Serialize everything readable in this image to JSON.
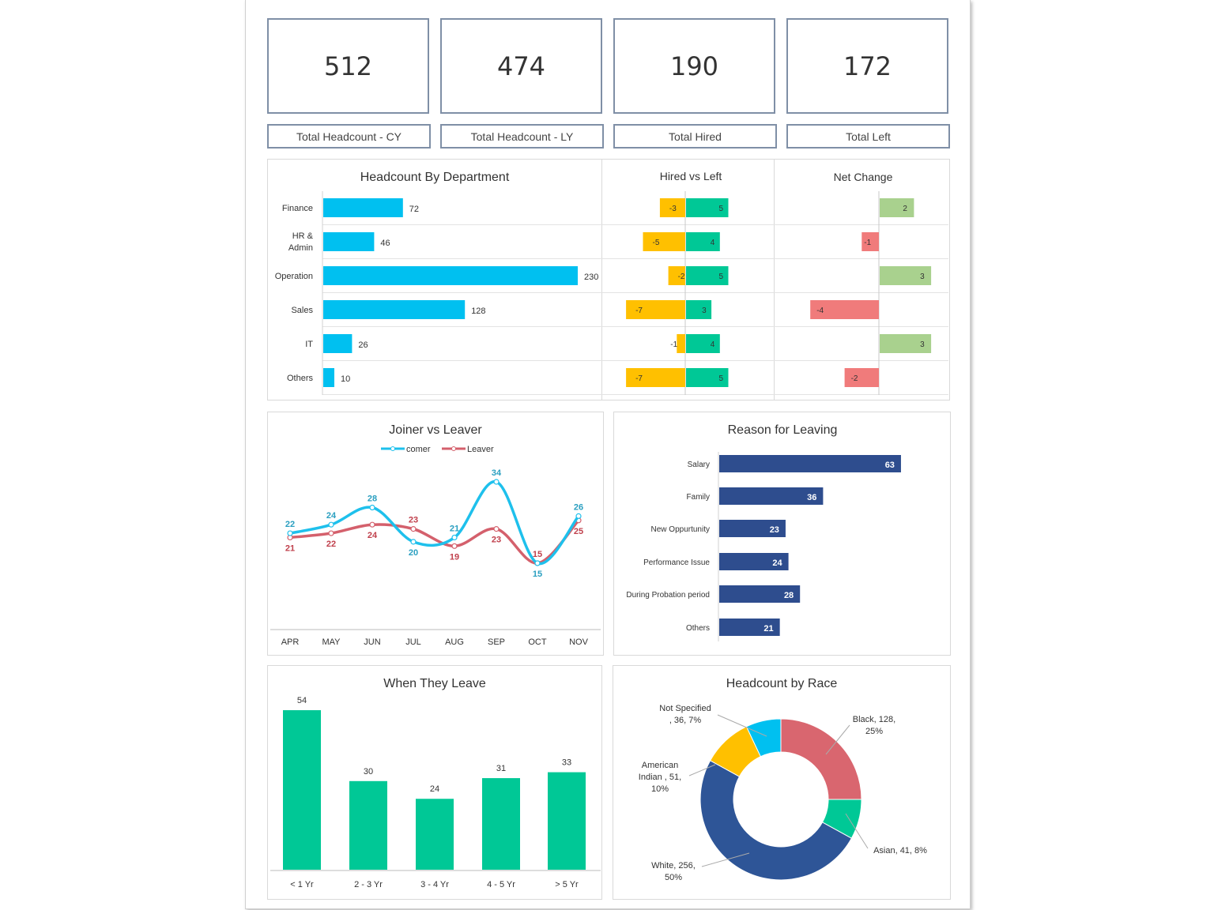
{
  "kpis": [
    {
      "value": "512",
      "label": "Total Headcount - CY"
    },
    {
      "value": "474",
      "label": "Total Headcount - LY"
    },
    {
      "value": "190",
      "label": "Total Hired"
    },
    {
      "value": "172",
      "label": "Total Left"
    }
  ],
  "colors": {
    "dept_bar": "#00c0f0",
    "left": "#ffc000",
    "hired": "#00c896",
    "net_pos": "#a9d18e",
    "net_neg": "#f07b7b",
    "comer": "#1ec0ec",
    "leaver": "#d4606c",
    "reason": "#2e4d8e",
    "when": "#00c896"
  },
  "chart_data": [
    {
      "type": "bar",
      "title": "Headcount By Department",
      "orientation": "horizontal",
      "categories": [
        "Finance",
        "HR & Admin",
        "Operation",
        "Sales",
        "IT",
        "Others"
      ],
      "values": [
        72,
        46,
        230,
        128,
        26,
        10
      ]
    },
    {
      "type": "bar",
      "title": "Hired vs Left",
      "orientation": "horizontal",
      "categories": [
        "Finance",
        "HR & Admin",
        "Operation",
        "Sales",
        "IT",
        "Others"
      ],
      "series": [
        {
          "values": [
            -3,
            -5,
            -2,
            -7,
            -1,
            -7
          ]
        },
        {
          "values": [
            5,
            4,
            5,
            3,
            4,
            5
          ]
        }
      ]
    },
    {
      "type": "bar",
      "title": "Net Change",
      "orientation": "horizontal",
      "categories": [
        "Finance",
        "HR & Admin",
        "Operation",
        "Sales",
        "IT",
        "Others"
      ],
      "values": [
        2,
        -1,
        3,
        -4,
        3,
        -2
      ]
    },
    {
      "type": "line",
      "title": "Joiner vs Leaver",
      "categories": [
        "APR",
        "MAY",
        "JUN",
        "JUL",
        "AUG",
        "SEP",
        "OCT",
        "NOV"
      ],
      "legend": "top",
      "series": [
        {
          "name": "comer",
          "values": [
            22,
            24,
            28,
            20,
            21,
            34,
            15,
            26
          ]
        },
        {
          "name": "Leaver",
          "values": [
            21,
            22,
            24,
            23,
            19,
            23,
            15,
            25
          ]
        }
      ]
    },
    {
      "type": "bar",
      "title": "Reason for Leaving",
      "orientation": "horizontal",
      "categories": [
        "Salary",
        "Family",
        "New Oppurtunity",
        "Performance Issue",
        "During Probation period",
        "Others"
      ],
      "values": [
        63,
        36,
        23,
        24,
        28,
        21
      ]
    },
    {
      "type": "bar",
      "title": "When They Leave",
      "categories": [
        "< 1 Yr",
        "2 - 3 Yr",
        "3 - 4 Yr",
        "4 - 5 Yr",
        "> 5 Yr"
      ],
      "values": [
        54,
        30,
        24,
        31,
        33
      ]
    },
    {
      "type": "pie",
      "title": "Headcount by Race",
      "donut": true,
      "slices": [
        {
          "label": "Black, 128, 25%",
          "name": "Black",
          "value": 128,
          "color": "#d9666f"
        },
        {
          "label": "Asian, 41, 8%",
          "name": "Asian",
          "value": 41,
          "color": "#00c896"
        },
        {
          "label": "White, 256, 50%",
          "name": "White",
          "value": 256,
          "color": "#2e5597"
        },
        {
          "label": "American Indian , 51, 10%",
          "name": "American Indian",
          "value": 51,
          "color": "#ffc000"
        },
        {
          "label": "Not Specified , 36, 7%",
          "name": "Not Specified",
          "value": 36,
          "color": "#00c0f0"
        }
      ]
    }
  ]
}
